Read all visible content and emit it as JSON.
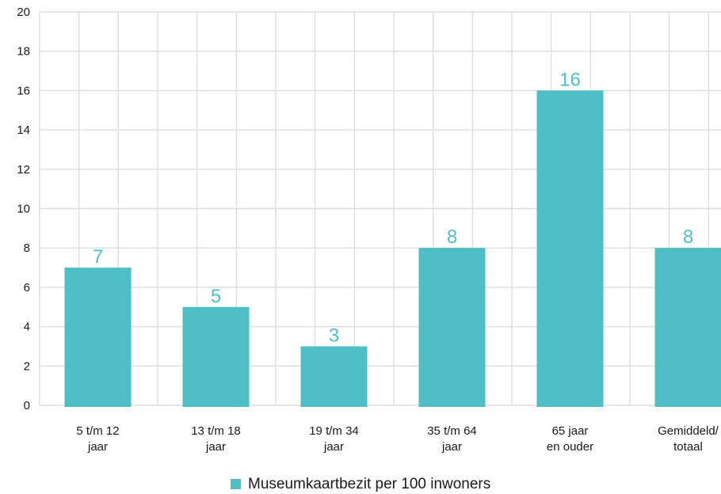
{
  "chart_data": {
    "type": "bar",
    "categories": [
      [
        "5 t/m 12",
        "jaar"
      ],
      [
        "13 t/m 18",
        "jaar"
      ],
      [
        "19 t/m 34",
        "jaar"
      ],
      [
        "35 t/m 64",
        "jaar"
      ],
      [
        "65 jaar",
        "en ouder"
      ],
      [
        "Gemiddeld/",
        "totaal"
      ]
    ],
    "series": [
      {
        "name": "Museumkaartbezit per 100 inwoners",
        "values": [
          7,
          5,
          3,
          8,
          16,
          8
        ],
        "data_labels": [
          "7",
          "5",
          "3",
          "8",
          "16",
          "8"
        ],
        "color": "#4dbfc5"
      }
    ],
    "yticks": [
      0,
      2,
      4,
      6,
      8,
      10,
      12,
      14,
      16,
      18,
      20
    ],
    "ylim": [
      0,
      20
    ],
    "grid": true,
    "legend_position": "bottom-center",
    "colors": {
      "bar": "#4dbfc5",
      "label": "#4dbfc5",
      "grid": "#dedede",
      "text": "#1a1a1a"
    }
  }
}
